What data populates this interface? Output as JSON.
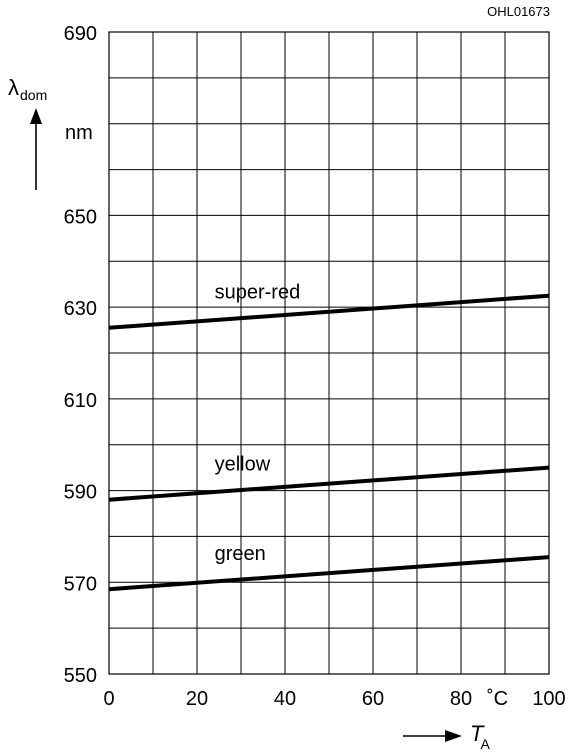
{
  "chart_data": {
    "type": "line",
    "figure_code": "OHL01673",
    "ylabel": {
      "symbol": "λ",
      "subscript": "dom"
    },
    "yunit": "nm",
    "xlabel": {
      "symbol": "T",
      "subscript": "A"
    },
    "xunit": "˚C",
    "xlim": [
      0,
      100
    ],
    "ylim": [
      550,
      690
    ],
    "grid": true,
    "x_ticks": [
      0,
      20,
      40,
      60,
      80,
      100
    ],
    "y_ticks": [
      550,
      570,
      590,
      610,
      630,
      650,
      690
    ],
    "series": [
      {
        "name": "super-red",
        "x": [
          0,
          100
        ],
        "y": [
          625.5,
          632.5
        ]
      },
      {
        "name": "yellow",
        "x": [
          0,
          100
        ],
        "y": [
          588,
          595
        ]
      },
      {
        "name": "green",
        "x": [
          0,
          100
        ],
        "y": [
          568.5,
          575.5
        ]
      }
    ],
    "colors": {
      "line": "#000000",
      "grid": "#000000"
    }
  }
}
